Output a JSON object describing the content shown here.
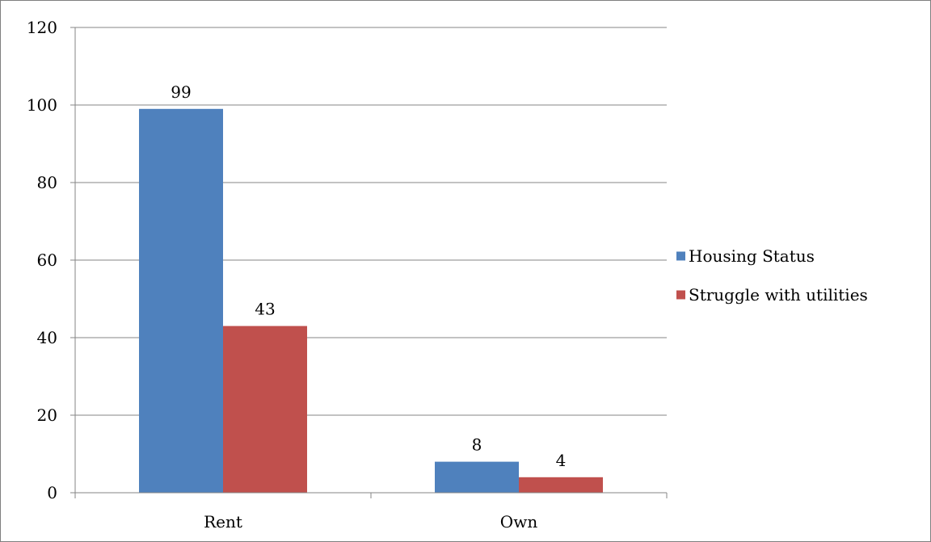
{
  "chart_data": {
    "type": "bar",
    "title": "",
    "xlabel": "",
    "ylabel": "",
    "categories": [
      "Rent",
      "Own"
    ],
    "series": [
      {
        "name": "Housing Status",
        "values": [
          99,
          8
        ],
        "color": "#4f81bd"
      },
      {
        "name": "Struggle with utilities",
        "values": [
          43,
          4
        ],
        "color": "#c0504d"
      }
    ],
    "ylim": [
      0,
      120
    ],
    "yticks": [
      0,
      20,
      40,
      60,
      80,
      100,
      120
    ],
    "grid": true,
    "legend_position": "right",
    "data_labels": true
  }
}
